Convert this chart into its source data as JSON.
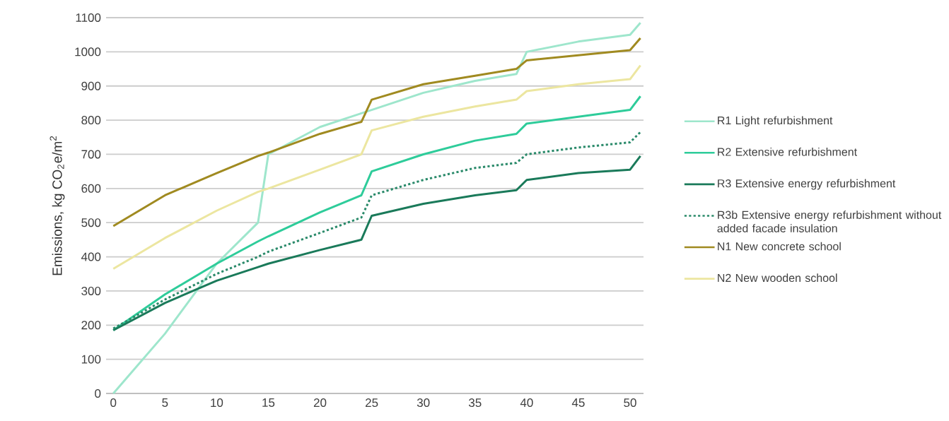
{
  "chart_data": {
    "type": "line",
    "ylabel": "Emissions, kg CO$_{2}$e/m$^{2}$",
    "x": [
      0,
      5,
      10,
      14,
      15,
      20,
      24,
      25,
      30,
      35,
      39,
      40,
      45,
      50,
      51
    ],
    "series": [
      {
        "name": "R1 Light refurbishment",
        "color": "#9ee6cc",
        "values": [
          0,
          175,
          380,
          500,
          700,
          780,
          820,
          830,
          880,
          915,
          935,
          1000,
          1030,
          1050,
          1085
        ]
      },
      {
        "name": "R2 Extensive refurbishment",
        "color": "#2ecc9a",
        "values": [
          185,
          290,
          380,
          445,
          460,
          530,
          580,
          650,
          700,
          740,
          760,
          790,
          810,
          830,
          870
        ]
      },
      {
        "name": "R3 Extensive energy refurbishment",
        "color": "#1a7a5a",
        "values": [
          185,
          265,
          330,
          370,
          380,
          420,
          450,
          520,
          555,
          580,
          595,
          625,
          645,
          655,
          695
        ]
      },
      {
        "name": "R3b Extensive energy refurbishment without added facade insulation",
        "color": "#2a8a6a",
        "line_style": "dotted",
        "values": [
          190,
          275,
          350,
          400,
          415,
          470,
          515,
          580,
          625,
          660,
          675,
          700,
          720,
          735,
          765
        ]
      },
      {
        "name": "N1 New concrete school",
        "color": "#a08a20",
        "values": [
          490,
          580,
          645,
          695,
          705,
          760,
          795,
          860,
          905,
          930,
          950,
          975,
          990,
          1005,
          1040
        ]
      },
      {
        "name": "N2 New wooden school",
        "color": "#ece6a0",
        "values": [
          365,
          455,
          535,
          590,
          600,
          655,
          700,
          770,
          810,
          840,
          860,
          885,
          905,
          920,
          960
        ]
      }
    ],
    "xlim": [
      -0.7,
      51.3
    ],
    "ylim": [
      0,
      1100
    ],
    "xticks": [
      0,
      5,
      10,
      15,
      20,
      25,
      30,
      35,
      40,
      45,
      50
    ],
    "yticks": [
      0,
      100,
      200,
      300,
      400,
      500,
      600,
      700,
      800,
      900,
      1000,
      1100
    ],
    "grid": "y",
    "legend": "right",
    "marker": "none",
    "line_style": "solid"
  }
}
